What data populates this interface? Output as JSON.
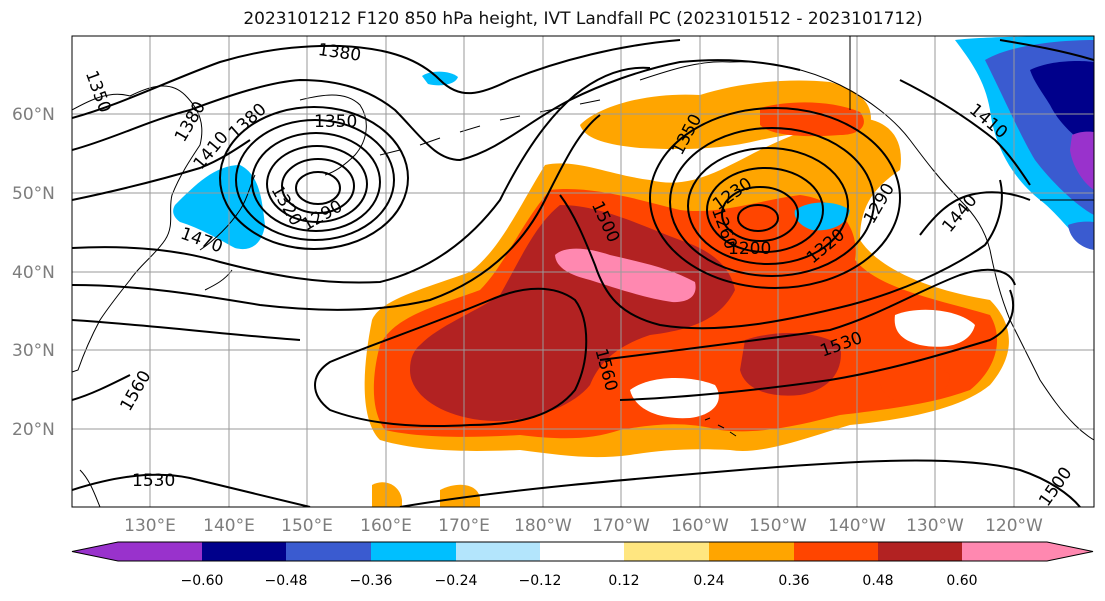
{
  "title": "2023101212 F120 850 hPa height, IVT Landfall PC (2023101512 - 2023101712)",
  "lat_labels": [
    "60°N",
    "50°N",
    "40°N",
    "30°N",
    "20°N"
  ],
  "lon_labels": [
    "130°E",
    "140°E",
    "150°E",
    "160°E",
    "170°E",
    "180°W",
    "170°W",
    "160°W",
    "150°W",
    "140°W",
    "130°W",
    "120°W"
  ],
  "contour_labels": [
    "1380",
    "1350",
    "1380",
    "1380",
    "1350",
    "1410",
    "1320",
    "1290",
    "1470",
    "1500",
    "1350",
    "1260",
    "1230",
    "1290",
    "1200",
    "1320",
    "1410",
    "1440",
    "1560",
    "1530",
    "1560",
    "1530",
    "1500"
  ],
  "colorbar": {
    "tick_labels": [
      "−0.60",
      "−0.48",
      "−0.36",
      "−0.24",
      "−0.12",
      "0.12",
      "0.24",
      "0.36",
      "0.48",
      "0.60"
    ],
    "colors": [
      "#9932cc",
      "#00008b",
      "#3a5bd0",
      "#00bfff",
      "#b3e5fc",
      "#ffffff",
      "#ffe680",
      "#ffa500",
      "#ff4500",
      "#b22222",
      "#ff88b0",
      "#ff88b0"
    ]
  }
}
